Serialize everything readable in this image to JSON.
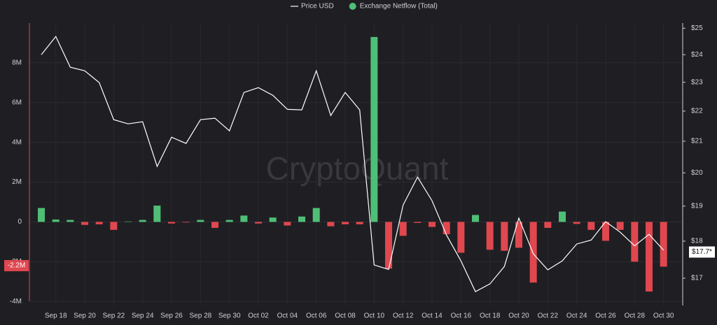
{
  "chart_data": {
    "type": "combo",
    "watermark": "CryptoQuant",
    "categories": [
      null,
      "Sep 18",
      null,
      "Sep 20",
      null,
      "Sep 22",
      null,
      "Sep 24",
      null,
      "Sep 26",
      null,
      "Sep 28",
      null,
      "Sep 30",
      null,
      "Oct 02",
      null,
      "Oct 04",
      null,
      "Oct 06",
      null,
      "Oct 08",
      null,
      "Oct 10",
      null,
      "Oct 12",
      null,
      "Oct 14",
      null,
      "Oct 16",
      null,
      "Oct 18",
      null,
      "Oct 20",
      null,
      "Oct 22",
      null,
      "Oct 24",
      null,
      "Oct 26",
      null,
      "Oct 28",
      null,
      "Oct 30"
    ],
    "series": [
      {
        "name": "Price USD",
        "type": "line",
        "axis": "y2",
        "color": "#ffffff",
        "values": [
          24.0,
          24.68,
          23.54,
          23.41,
          22.99,
          21.71,
          21.57,
          21.64,
          20.2,
          21.13,
          20.93,
          21.71,
          21.76,
          21.34,
          22.64,
          22.81,
          22.54,
          22.06,
          22.04,
          23.41,
          21.85,
          22.64,
          22.04,
          17.35,
          17.23,
          19.03,
          19.87,
          19.16,
          18.17,
          17.46,
          16.65,
          16.85,
          17.31,
          18.65,
          17.65,
          17.22,
          17.46,
          17.92,
          18.03,
          18.55,
          18.25,
          17.87,
          18.19,
          17.75
        ]
      },
      {
        "name": "Exchange Netflow (Total)",
        "type": "bar",
        "axis": "y",
        "color": "#4fbf76",
        "negative_color": "#e0474f",
        "values": [
          700000,
          120000,
          100000,
          -150000,
          -120000,
          -400000,
          20000,
          100000,
          820000,
          -80000,
          -30000,
          100000,
          -300000,
          100000,
          320000,
          -80000,
          220000,
          -180000,
          270000,
          700000,
          -220000,
          -120000,
          -120000,
          9300000,
          -2350000,
          -700000,
          -50000,
          -250000,
          -620000,
          -1550000,
          350000,
          -1400000,
          -1450000,
          -1300000,
          -3050000,
          -300000,
          520000,
          -100000,
          -400000,
          -950000,
          -400000,
          -2000000,
          -3500000,
          -2250000
        ]
      }
    ],
    "ylim": [
      -4200000,
      10000000
    ],
    "yticks": [
      {
        "value": -4000000,
        "label": "-4M"
      },
      {
        "value": -2000000,
        "label": "-2M"
      },
      {
        "value": 0,
        "label": "0"
      },
      {
        "value": 2000000,
        "label": "2M"
      },
      {
        "value": 4000000,
        "label": "4M"
      },
      {
        "value": 6000000,
        "label": "6M"
      },
      {
        "value": 8000000,
        "label": "8M"
      }
    ],
    "y2lim": [
      16.3,
      25.2
    ],
    "y2log": true,
    "y2ticks": [
      {
        "value": 17,
        "label": "$17"
      },
      {
        "value": 18,
        "label": "$18"
      },
      {
        "value": 19,
        "label": "$19"
      },
      {
        "value": 20,
        "label": "$20"
      },
      {
        "value": 21,
        "label": "$21"
      },
      {
        "value": 22,
        "label": "$22"
      },
      {
        "value": 23,
        "label": "$23"
      },
      {
        "value": 24,
        "label": "$24"
      },
      {
        "value": 25,
        "label": "$25"
      }
    ],
    "annotations": [
      {
        "label": "-2.2M",
        "value": -2200000,
        "axis": "y",
        "color": "#e0474f"
      },
      {
        "label": "$17.7*",
        "value": 17.7,
        "axis": "y2",
        "color": "#ffffff"
      }
    ],
    "grid": true
  }
}
